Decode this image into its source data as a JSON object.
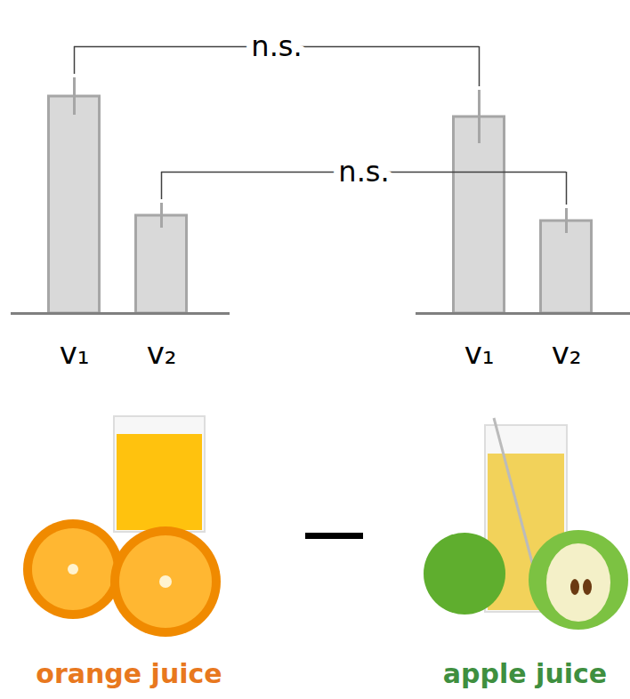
{
  "chart_data": {
    "type": "bar",
    "categories": [
      "v₁",
      "v₂"
    ],
    "color": "#d9d9d9",
    "ylim": [
      0,
      30
    ],
    "tick_labels": false,
    "series": [
      {
        "name": "orange juice",
        "color": "#e8781e",
        "values": [
          24.4,
          11.0
        ],
        "errors": [
          2.1,
          1.4
        ]
      },
      {
        "name": "apple juice",
        "color": "#3f8f3f",
        "values": [
          22.1,
          10.4
        ],
        "errors": [
          3.0,
          1.4
        ]
      }
    ],
    "annotations": [
      {
        "text": "n.s.",
        "category": "v₁"
      },
      {
        "text": "n.s.",
        "category": "v₂"
      }
    ]
  }
}
